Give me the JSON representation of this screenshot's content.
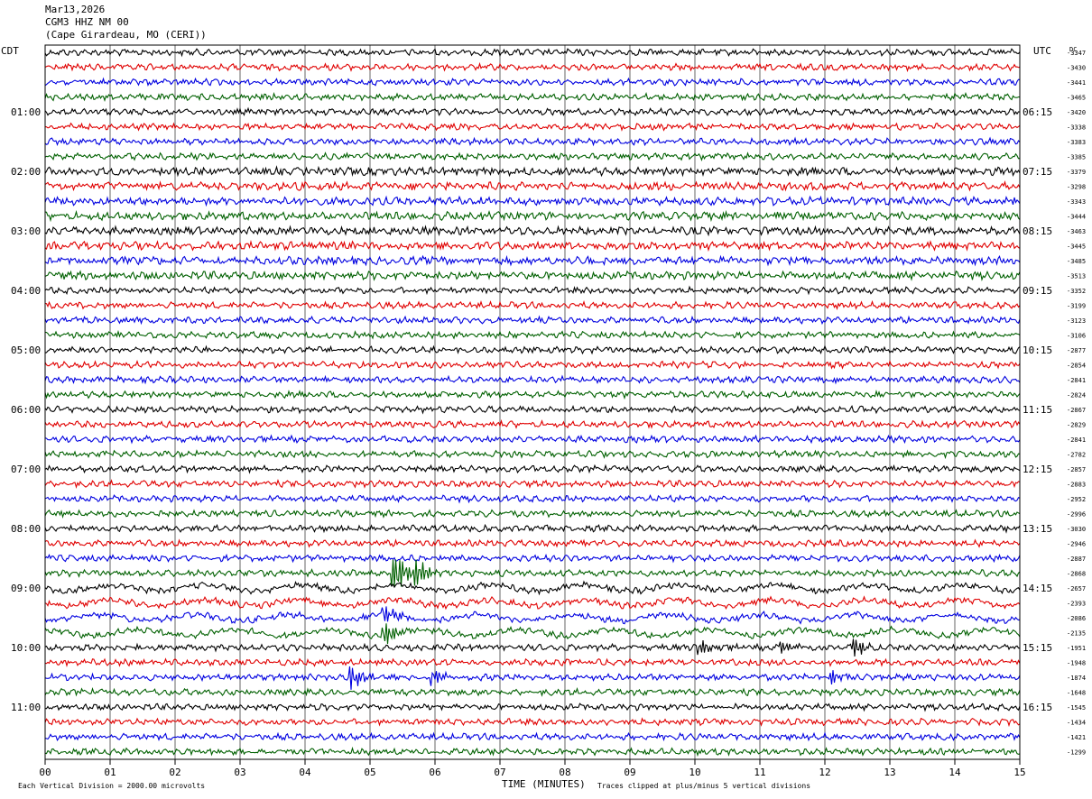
{
  "header": {
    "date": "Mar13,2026",
    "station": "CGM3 HHZ NM 00",
    "location": "(Cape Girardeau, MO (CERI))"
  },
  "chart_data": {
    "type": "line",
    "left_timezone": "CDT",
    "right_timezone": "UTC",
    "dc_label": "DC",
    "xlabel": "TIME (MINUTES)",
    "x_ticks": [
      "00",
      "01",
      "02",
      "03",
      "04",
      "05",
      "06",
      "07",
      "08",
      "09",
      "10",
      "11",
      "12",
      "13",
      "14",
      "15"
    ],
    "xlim": [
      0,
      15
    ],
    "left_hour_labels": [
      "01:00",
      "02:00",
      "03:00",
      "04:00",
      "05:00",
      "06:00",
      "07:00",
      "08:00",
      "09:00",
      "10:00",
      "11:00"
    ],
    "right_hour_labels": [
      "06:15",
      "07:15",
      "08:15",
      "09:15",
      "10:15",
      "11:15",
      "12:15",
      "13:15",
      "14:15",
      "15:15",
      "16:15"
    ],
    "trace_colors": [
      "#000000",
      "#e00000",
      "#0000e0",
      "#006000"
    ],
    "dc_offsets": [
      "-3347",
      "-3430",
      "-3441",
      "-3465",
      "-3420",
      "-3338",
      "-3383",
      "-3385",
      "-3379",
      "-3298",
      "-3343",
      "-3444",
      "-3463",
      "-3445",
      "-3485",
      "-3513",
      "-3352",
      "-3199",
      "-3123",
      "-3106",
      "-2877",
      "-2854",
      "-2841",
      "-2824",
      "-2867",
      "-2829",
      "-2841",
      "-2782",
      "-2857",
      "-2883",
      "-2952",
      "-2996",
      "-3030",
      "-2946",
      "-2887",
      "-2868",
      "-2657",
      "-2393",
      "-2086",
      "-2135",
      "-1951",
      "-1948",
      "-1874",
      "-1648",
      "-1545",
      "-1434",
      "-1421",
      "-1299"
    ],
    "events": [
      {
        "row": 35,
        "minute": 5.35,
        "amp": 38
      },
      {
        "row": 35,
        "minute": 5.7,
        "amp": 14
      },
      {
        "row": 39,
        "minute": 5.2,
        "amp": 14
      },
      {
        "row": 38,
        "minute": 5.2,
        "amp": 12
      },
      {
        "row": 40,
        "minute": 10.05,
        "amp": 10
      },
      {
        "row": 40,
        "minute": 11.3,
        "amp": 10
      },
      {
        "row": 40,
        "minute": 12.45,
        "amp": 12
      },
      {
        "row": 42,
        "minute": 4.7,
        "amp": 14
      },
      {
        "row": 42,
        "minute": 5.95,
        "amp": 12
      },
      {
        "row": 42,
        "minute": 12.1,
        "amp": 8
      }
    ],
    "footer_left": "Each Vertical Division = 2000.00 microvolts",
    "footer_right": "Traces clipped at plus/minus 5 vertical divisions"
  }
}
